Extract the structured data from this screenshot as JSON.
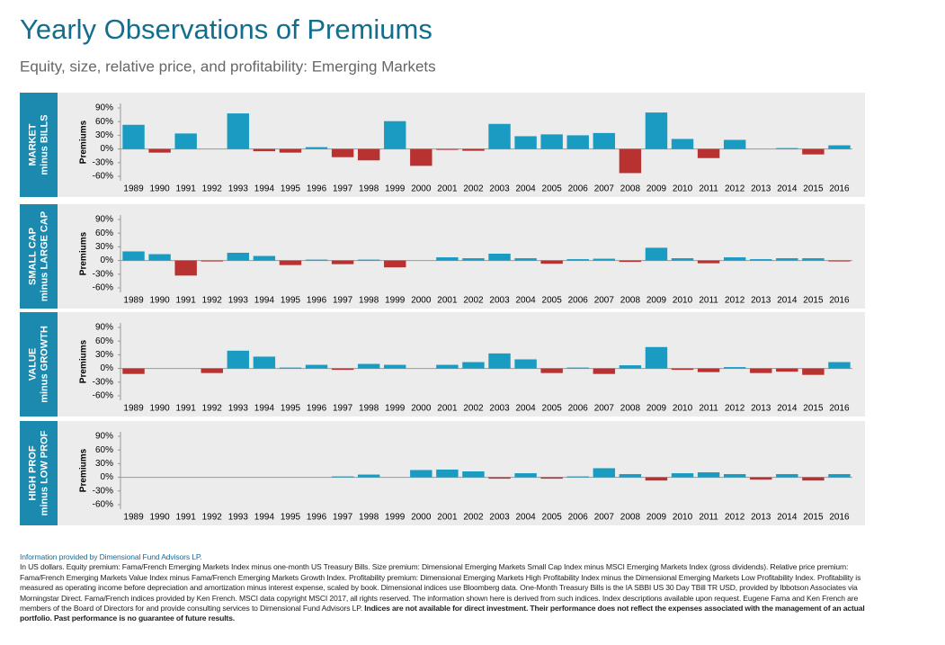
{
  "title": "Yearly Observations of Premiums",
  "subtitle": "Equity, size, relative price, and profitability: Emerging Markets",
  "source": "Information provided by Dimensional Fund Advisors LP.",
  "notes": "In US dollars. Equity premium: Fama/French Emerging Markets Index minus one-month US Treasury Bills. Size premium: Dimensional Emerging Markets Small Cap Index minus MSCI Emerging Markets Index (gross dividends). Relative price premium: Fama/French Emerging Markets Value Index minus Fama/French Emerging Markets Growth Index. Profitability premium: Dimensional Emerging Markets High Profitability Index minus the Dimensional Emerging Markets Low Profitability Index. Profitability is measured as operating income before depreciation and amortization minus interest expense, scaled by book. Dimensional indices use Bloomberg data. One-Month Treasury Bills is the IA SBBI US 30 Day TBill TR USD, provided by Ibbotson Associates via Morningstar Direct. Fama/French indices provided by Ken French. MSCI data copyright MSCI 2017, all rights reserved. The information shown here is derived from such indices. Index descriptions available upon request. Eugene Fama and Ken French are members of the Board of Directors for and provide consulting services to Dimensional Fund Advisors LP.",
  "notes_bold": "Indices are not available for direct investment. Their performance does not reflect the expenses associated with the management of an actual portfolio. Past performance is no guarantee of future results.",
  "chart_data": [
    {
      "type": "bar",
      "panel_label": [
        "MARKET",
        "minus BILLS"
      ],
      "ylabel": "Premiums",
      "categories": [
        "1989",
        "1990",
        "1991",
        "1992",
        "1993",
        "1994",
        "1995",
        "1996",
        "1997",
        "1998",
        "1999",
        "2000",
        "2001",
        "2002",
        "2003",
        "2004",
        "2005",
        "2006",
        "2007",
        "2008",
        "2009",
        "2010",
        "2011",
        "2012",
        "2013",
        "2014",
        "2015",
        "2016"
      ],
      "values": [
        53,
        -8,
        34,
        0,
        78,
        -5,
        -8,
        4,
        -18,
        -25,
        61,
        -37,
        -2,
        -4,
        55,
        28,
        32,
        30,
        35,
        -53,
        80,
        22,
        -20,
        20,
        0,
        2,
        -12,
        8
      ],
      "color": "#1a9cc2",
      "negative_color": "#b83232",
      "ylim": [
        -60,
        90
      ],
      "yticks": [
        {
          "value": -60,
          "label": "-60%"
        },
        {
          "value": -30,
          "label": "-30%"
        },
        {
          "value": 0,
          "label": "0%"
        },
        {
          "value": 30,
          "label": "30%"
        },
        {
          "value": 60,
          "label": "60%"
        },
        {
          "value": 90,
          "label": "90%"
        }
      ]
    },
    {
      "type": "bar",
      "panel_label": [
        "SMALL CAP",
        "minus LARGE CAP"
      ],
      "ylabel": "Premiums",
      "categories": [
        "1989",
        "1990",
        "1991",
        "1992",
        "1993",
        "1994",
        "1995",
        "1996",
        "1997",
        "1998",
        "1999",
        "2000",
        "2001",
        "2002",
        "2003",
        "2004",
        "2005",
        "2006",
        "2007",
        "2008",
        "2009",
        "2010",
        "2011",
        "2012",
        "2013",
        "2014",
        "2015",
        "2016"
      ],
      "values": [
        20,
        14,
        -33,
        -2,
        17,
        10,
        -10,
        2,
        -8,
        2,
        -15,
        0,
        7,
        5,
        15,
        5,
        -7,
        3,
        4,
        -3,
        28,
        5,
        -6,
        7,
        3,
        5,
        5,
        -2
      ],
      "color": "#1a9cc2",
      "negative_color": "#b83232",
      "ylim": [
        -60,
        90
      ],
      "yticks": [
        {
          "value": -60,
          "label": "-60%"
        },
        {
          "value": -30,
          "label": "-30%"
        },
        {
          "value": 0,
          "label": "0%"
        },
        {
          "value": 30,
          "label": "30%"
        },
        {
          "value": 60,
          "label": "60%"
        },
        {
          "value": 90,
          "label": "90%"
        }
      ]
    },
    {
      "type": "bar",
      "panel_label": [
        "VALUE",
        "minus GROWTH"
      ],
      "ylabel": "Premiums",
      "categories": [
        "1989",
        "1990",
        "1991",
        "1992",
        "1993",
        "1994",
        "1995",
        "1996",
        "1997",
        "1998",
        "1999",
        "2000",
        "2001",
        "2002",
        "2003",
        "2004",
        "2005",
        "2006",
        "2007",
        "2008",
        "2009",
        "2010",
        "2011",
        "2012",
        "2013",
        "2014",
        "2015",
        "2016"
      ],
      "values": [
        -12,
        0,
        0,
        -10,
        39,
        26,
        2,
        8,
        -3,
        10,
        8,
        0,
        8,
        14,
        33,
        20,
        -10,
        2,
        -12,
        7,
        47,
        -3,
        -8,
        3,
        -10,
        -7,
        -14,
        14
      ],
      "color": "#1a9cc2",
      "negative_color": "#b83232",
      "ylim": [
        -60,
        90
      ],
      "yticks": [
        {
          "value": -60,
          "label": "-60%"
        },
        {
          "value": -30,
          "label": "-30%"
        },
        {
          "value": 0,
          "label": "0%"
        },
        {
          "value": 30,
          "label": "30%"
        },
        {
          "value": 60,
          "label": "60%"
        },
        {
          "value": 90,
          "label": "90%"
        }
      ]
    },
    {
      "type": "bar",
      "panel_label": [
        "HIGH PROF",
        "minus LOW PROF"
      ],
      "ylabel": "Premiums",
      "categories": [
        "1989",
        "1990",
        "1991",
        "1992",
        "1993",
        "1994",
        "1995",
        "1996",
        "1997",
        "1998",
        "1999",
        "2000",
        "2001",
        "2002",
        "2003",
        "2004",
        "2005",
        "2006",
        "2007",
        "2008",
        "2009",
        "2010",
        "2011",
        "2012",
        "2013",
        "2014",
        "2015",
        "2016"
      ],
      "values": [
        null,
        null,
        null,
        null,
        null,
        null,
        null,
        null,
        2,
        6,
        0,
        16,
        17,
        13,
        -3,
        9,
        -3,
        2,
        20,
        7,
        -7,
        9,
        11,
        7,
        -5,
        7,
        -7,
        7
      ],
      "color": "#1a9cc2",
      "negative_color": "#b83232",
      "ylim": [
        -60,
        90
      ],
      "yticks": [
        {
          "value": -60,
          "label": "-60%"
        },
        {
          "value": -30,
          "label": "-30%"
        },
        {
          "value": 0,
          "label": "0%"
        },
        {
          "value": 30,
          "label": "30%"
        },
        {
          "value": 60,
          "label": "60%"
        },
        {
          "value": 90,
          "label": "90%"
        }
      ]
    }
  ]
}
